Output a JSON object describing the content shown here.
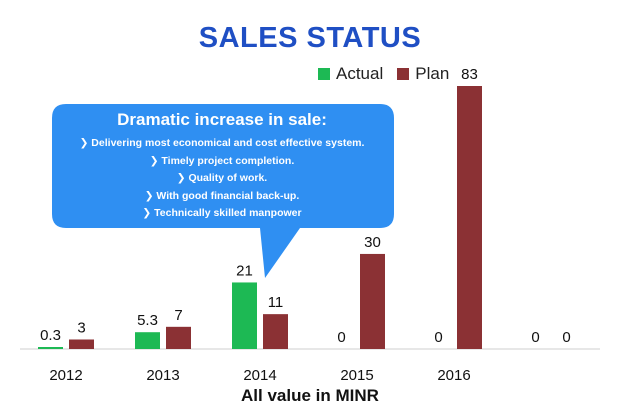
{
  "chart_data": {
    "type": "bar",
    "title": "SALES STATUS",
    "categories": [
      "2012",
      "2013",
      "2014",
      "2015",
      "2016",
      ""
    ],
    "series": [
      {
        "name": "Actual",
        "values": [
          0.3,
          5.3,
          21,
          0,
          0,
          0
        ],
        "labels": [
          "0.3",
          "5.3",
          "21",
          "0",
          "0",
          "0"
        ],
        "color": "#1db954"
      },
      {
        "name": "Plan",
        "values": [
          3,
          7,
          11,
          30,
          83,
          0
        ],
        "labels": [
          "3",
          "7",
          "11",
          "30",
          "83",
          "0"
        ],
        "color": "#8b3134"
      }
    ],
    "ylim": [
      0,
      83
    ],
    "xlabel": "All value in MINR",
    "grid": false,
    "legend_position": "top-right"
  },
  "callout": {
    "heading": "Dramatic increase in sale:",
    "lines": [
      "❯ Delivering  most economical and cost effective system.",
      "❯ Timely project completion.",
      "❯ Quality of work.",
      "❯ With good financial back-up.",
      "❯ Technically skilled manpower"
    ],
    "color": "#2f8ff2"
  }
}
